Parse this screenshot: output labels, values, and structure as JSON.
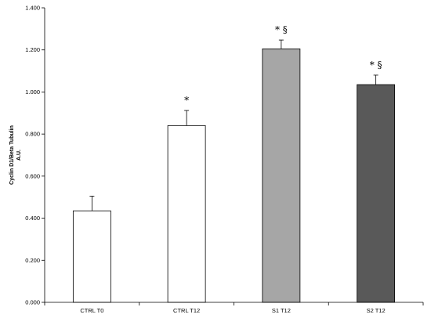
{
  "chart_data": {
    "type": "bar",
    "title": "",
    "xlabel": "",
    "ylabel_line1": "Cyclin D1/Beta Tubulin",
    "ylabel_line2": "A.U.",
    "ylim": [
      0,
      1.4
    ],
    "yticks": [
      "0.000",
      "0.200",
      "0.400",
      "0.600",
      "0.800",
      "1.000",
      "1.200",
      "1.400"
    ],
    "categories": [
      "CTRL T0",
      "CTRL T12",
      "S1 T12",
      "S2 T12"
    ],
    "values": [
      0.435,
      0.84,
      1.205,
      1.035
    ],
    "errors": [
      0.07,
      0.072,
      0.042,
      0.045
    ],
    "annotations": [
      "",
      "*",
      "* §",
      "* §"
    ],
    "colors": [
      "#ffffff",
      "#ffffff",
      "#a6a6a6",
      "#595959"
    ],
    "grid": false,
    "legend": "none"
  }
}
